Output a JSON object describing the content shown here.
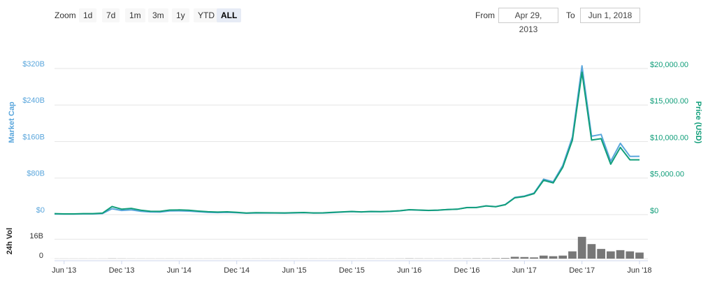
{
  "controls": {
    "zoom_label": "Zoom",
    "zoom_buttons": [
      "1d",
      "7d",
      "1m",
      "3m",
      "1y",
      "YTD",
      "ALL"
    ],
    "active_zoom": "ALL",
    "from_label": "From",
    "from_date": "Apr 29, 2013",
    "to_label": "To",
    "to_date": "Jun 1, 2018"
  },
  "chart_data": {
    "type": "line",
    "x": [
      "2013-05",
      "2013-06",
      "2013-07",
      "2013-08",
      "2013-09",
      "2013-10",
      "2013-11",
      "2013-12",
      "2014-01",
      "2014-02",
      "2014-03",
      "2014-04",
      "2014-05",
      "2014-06",
      "2014-07",
      "2014-08",
      "2014-09",
      "2014-10",
      "2014-11",
      "2014-12",
      "2015-01",
      "2015-02",
      "2015-03",
      "2015-04",
      "2015-05",
      "2015-06",
      "2015-07",
      "2015-08",
      "2015-09",
      "2015-10",
      "2015-11",
      "2015-12",
      "2016-01",
      "2016-02",
      "2016-03",
      "2016-04",
      "2016-05",
      "2016-06",
      "2016-07",
      "2016-08",
      "2016-09",
      "2016-10",
      "2016-11",
      "2016-12",
      "2017-01",
      "2017-02",
      "2017-03",
      "2017-04",
      "2017-05",
      "2017-06",
      "2017-07",
      "2017-08",
      "2017-09",
      "2017-10",
      "2017-11",
      "2017-12",
      "2018-01",
      "2018-02",
      "2018-03",
      "2018-04",
      "2018-05",
      "2018-06"
    ],
    "series": [
      {
        "name": "Market Cap",
        "color": "#5aa6dc",
        "axis": "y",
        "values": [
          1.44,
          1.12,
          1.07,
          1.47,
          1.55,
          2.33,
          12.9,
          9.1,
          10.4,
          7.4,
          5.7,
          5.5,
          7.9,
          8.2,
          7.6,
          6.3,
          5.1,
          4.5,
          5.1,
          4.3,
          3.0,
          3.5,
          3.4,
          3.3,
          3.2,
          3.7,
          4.1,
          3.3,
          3.4,
          4.5,
          5.5,
          6.4,
          5.6,
          6.6,
          6.3,
          6.9,
          8.2,
          10.5,
          9.8,
          9.1,
          9.7,
          11.2,
          11.8,
          15.4,
          15.6,
          19.2,
          17.4,
          22.0,
          37.6,
          40.6,
          47.2,
          77.6,
          71.9,
          107.6,
          170.2,
          326,
          171.7,
          175.6,
          116.8,
          156.2,
          127.6,
          127.7
        ]
      },
      {
        "name": "Price (USD)",
        "color": "#119e7a",
        "axis": "y2",
        "values": [
          130,
          100,
          95,
          130,
          135,
          200,
          1100,
          750,
          850,
          600,
          460,
          440,
          620,
          640,
          590,
          480,
          390,
          340,
          380,
          320,
          220,
          255,
          245,
          235,
          230,
          260,
          285,
          230,
          235,
          310,
          375,
          430,
          370,
          435,
          415,
          450,
          530,
          670,
          625,
          575,
          610,
          700,
          740,
          960,
          970,
          1190,
          1070,
          1350,
          2300,
          2480,
          2870,
          4700,
          4340,
          6470,
          10200,
          19500,
          10200,
          10400,
          6900,
          9200,
          7500,
          7500
        ]
      },
      {
        "name": "24h Vol",
        "color": "#777777",
        "axis": "y3",
        "values": [
          0.02,
          0.02,
          0.02,
          0.03,
          0.02,
          0.03,
          0.12,
          0.08,
          0.05,
          0.04,
          0.03,
          0.03,
          0.04,
          0.03,
          0.02,
          0.02,
          0.02,
          0.03,
          0.03,
          0.02,
          0.03,
          0.03,
          0.03,
          0.02,
          0.02,
          0.02,
          0.03,
          0.03,
          0.02,
          0.04,
          0.06,
          0.05,
          0.05,
          0.06,
          0.05,
          0.05,
          0.08,
          0.15,
          0.1,
          0.08,
          0.07,
          0.08,
          0.1,
          0.15,
          0.2,
          0.2,
          0.3,
          0.4,
          1.5,
          1.3,
          1.0,
          2.5,
          2.0,
          2.5,
          6,
          18,
          12,
          8,
          6,
          7,
          6,
          5
        ]
      }
    ],
    "ylim": [
      0,
      340
    ],
    "yticks": [
      {
        "value": 0,
        "label": "$0"
      },
      {
        "value": 80,
        "label": "$80B"
      },
      {
        "value": 160,
        "label": "$160B"
      },
      {
        "value": 240,
        "label": "$240B"
      },
      {
        "value": 320,
        "label": "$320B"
      }
    ],
    "y2lim": [
      0,
      21250
    ],
    "y2ticks": [
      {
        "value": 0,
        "label": "$0"
      },
      {
        "value": 5000,
        "label": "$5,000.00"
      },
      {
        "value": 10000,
        "label": "$10,000.00"
      },
      {
        "value": 15000,
        "label": "$15,000.00"
      },
      {
        "value": 20000,
        "label": "$20,000.00"
      }
    ],
    "y3lim": [
      0,
      30
    ],
    "y3ticks": [
      0,
      {
        "value": 16,
        "label": "16B"
      }
    ],
    "xticks": [
      {
        "value": "2013-06",
        "label": "Jun '13"
      },
      {
        "value": "2013-12",
        "label": "Dec '13"
      },
      {
        "value": "2014-06",
        "label": "Jun '14"
      },
      {
        "value": "2014-12",
        "label": "Dec '14"
      },
      {
        "value": "2015-06",
        "label": "Jun '15"
      },
      {
        "value": "2015-12",
        "label": "Dec '15"
      },
      {
        "value": "2016-06",
        "label": "Jun '16"
      },
      {
        "value": "2016-12",
        "label": "Dec '16"
      },
      {
        "value": "2017-06",
        "label": "Jun '17"
      },
      {
        "value": "2017-12",
        "label": "Dec '17"
      },
      {
        "value": "2018-06",
        "label": "Jun '18"
      }
    ],
    "grid": true
  }
}
